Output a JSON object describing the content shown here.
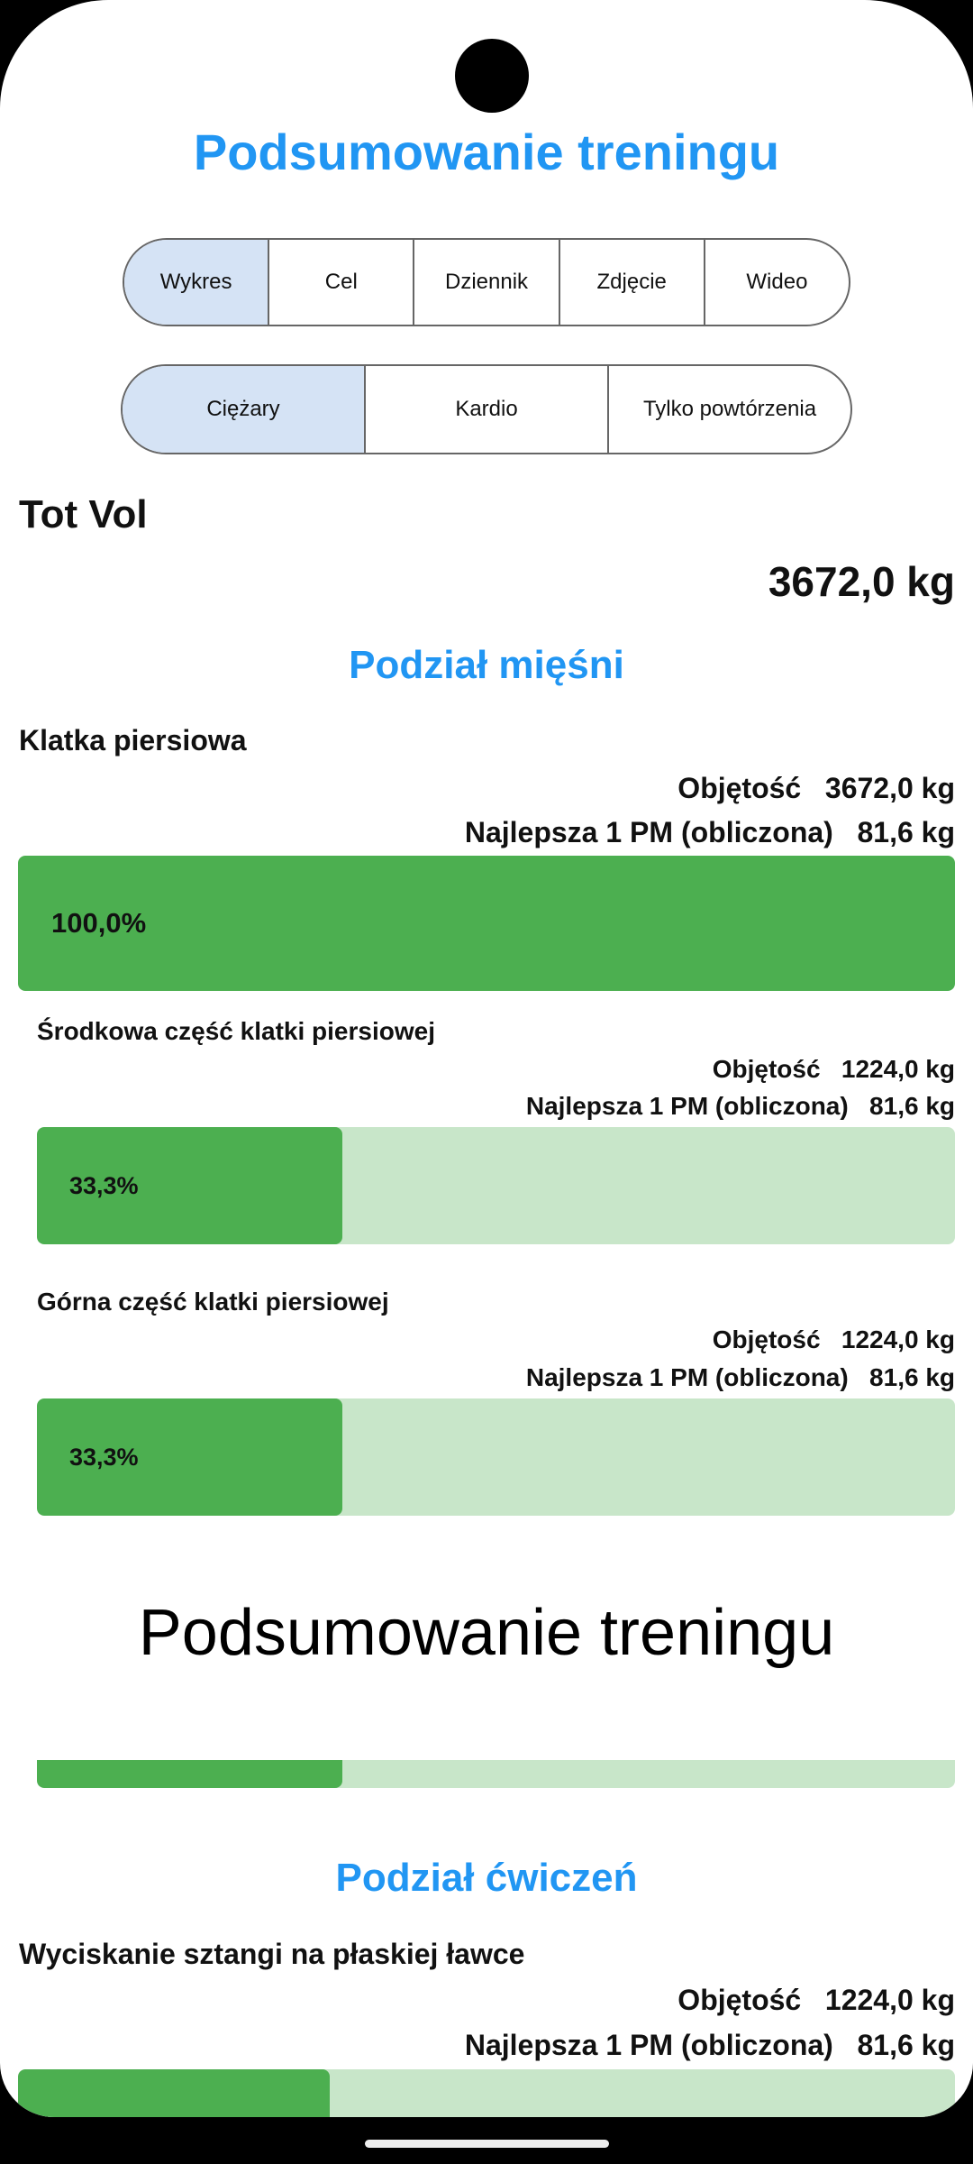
{
  "header": {
    "title": "Podsumowanie treningu"
  },
  "tabs": [
    {
      "label": "Wykres",
      "selected": true
    },
    {
      "label": "Cel"
    },
    {
      "label": "Dziennik"
    },
    {
      "label": "Zdjęcie"
    },
    {
      "label": "Wideo"
    }
  ],
  "type_tabs": [
    {
      "label": "Ciężary",
      "selected": true
    },
    {
      "label": "Kardio"
    },
    {
      "label": "Tylko powtórzenia"
    }
  ],
  "total": {
    "label": "Tot Vol",
    "value": "3672,0 kg"
  },
  "muscles": {
    "title": "Podział mięśni",
    "group": {
      "name": "Klatka piersiowa",
      "volume_label": "Objętość",
      "volume": "3672,0 kg",
      "orm_label": "Najlepsza 1 PM (obliczona)",
      "orm": "81,6 kg",
      "percent_label": "100,0%",
      "percent": 100
    },
    "items": [
      {
        "name": "Środkowa część klatki piersiowej",
        "volume_label": "Objętość",
        "volume": "1224,0 kg",
        "orm_label": "Najlepsza 1 PM (obliczona)",
        "orm": "81,6 kg",
        "percent_label": "33,3%",
        "percent": 33.3
      },
      {
        "name": "Górna część klatki piersiowej",
        "volume_label": "Objętość",
        "volume": "1224,0 kg",
        "orm_label": "Najlepsza 1 PM (obliczona)",
        "orm": "81,6 kg",
        "percent_label": "33,3%",
        "percent": 33.3
      }
    ],
    "partial_bar_percent": 33.3
  },
  "overlay_text": "Podsumowanie treningu",
  "exercises": {
    "title": "Podział ćwiczeń",
    "items": [
      {
        "name": "Wyciskanie sztangi na płaskiej ławce",
        "volume_label": "Objętość",
        "volume": "1224,0 kg",
        "orm_label": "Najlepsza 1 PM (obliczona)",
        "orm": "81,6 kg",
        "percent": 33.3
      }
    ]
  },
  "colors": {
    "accent": "#2196F3",
    "bar_fill": "#4CAF50",
    "bar_track": "#C8E6C9",
    "selected_tab": "#D5E3F5"
  }
}
